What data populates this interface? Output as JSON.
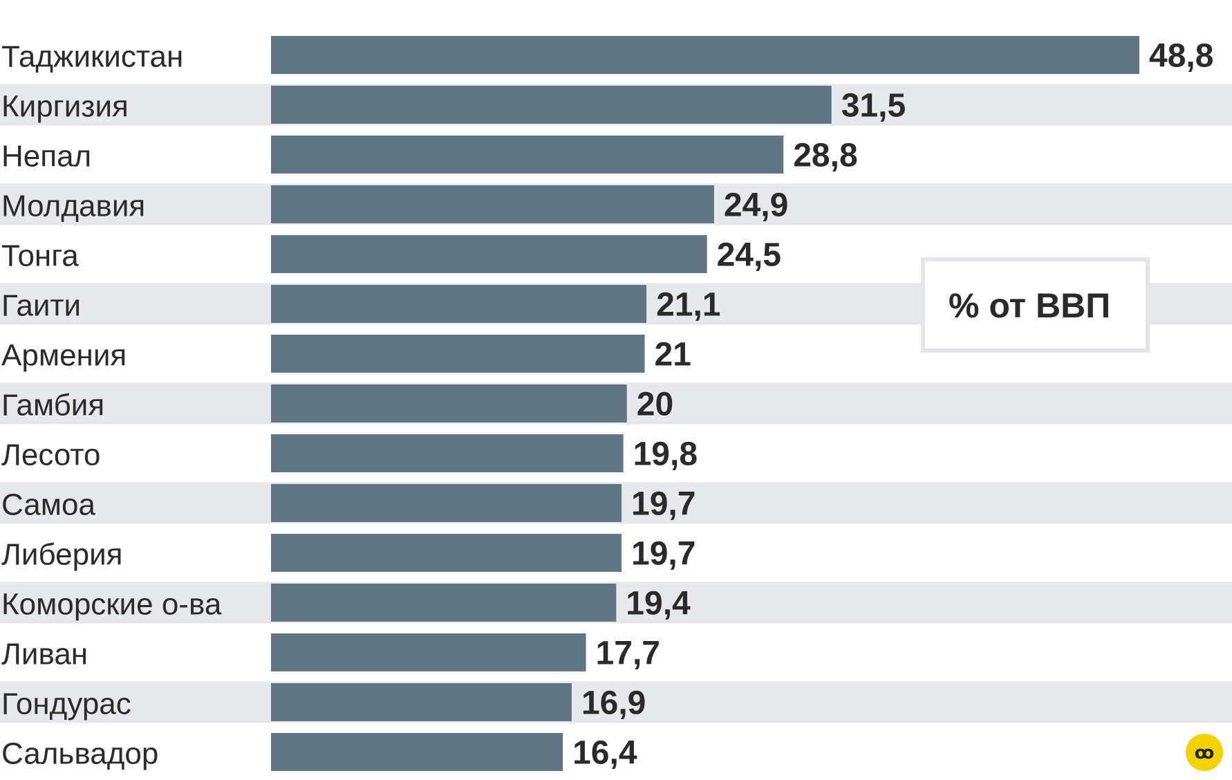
{
  "chart_data": {
    "type": "bar",
    "orientation": "horizontal",
    "unit_label": "% от ВВП",
    "categories": [
      "Таджикистан",
      "Киргизия",
      "Непал",
      "Молдавия",
      "Тонга",
      "Гаити",
      "Армения",
      "Гамбия",
      "Лесото",
      "Самоа",
      "Либерия",
      "Коморские о-ва",
      "Ливан",
      "Гондурас",
      "Сальвадор"
    ],
    "values": [
      48.8,
      31.5,
      28.8,
      24.9,
      24.5,
      21.1,
      21,
      20,
      19.8,
      19.7,
      19.7,
      19.4,
      17.7,
      16.9,
      16.4
    ],
    "value_labels": [
      "48,8",
      "31,5",
      "28,8",
      "24,9",
      "24,5",
      "21,1",
      "21",
      "20",
      "19,8",
      "19,7",
      "19,7",
      "19,4",
      "17,7",
      "16,9",
      "16,4"
    ],
    "xlim": [
      0,
      48.8
    ],
    "grid": false,
    "alternating_row_bands": true,
    "bar_color": "#627582",
    "band_color": "#e6e8eb"
  },
  "logo": {
    "icon": "publisher-logo-icon",
    "color": "#f2d200"
  }
}
